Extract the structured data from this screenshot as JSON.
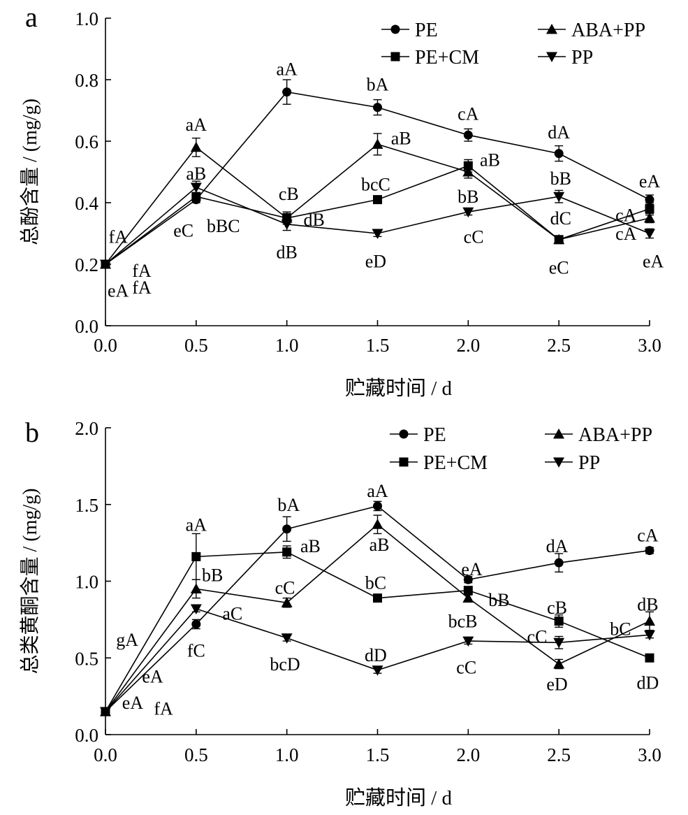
{
  "chart_data": [
    {
      "type": "line",
      "panel_label": "a",
      "xlabel": "贮藏时间 / d",
      "ylabel": "总酚含量 / (mg/g)",
      "xlim": [
        0,
        3
      ],
      "ylim": [
        0,
        1.0
      ],
      "x": [
        0.0,
        0.5,
        1.0,
        1.5,
        2.0,
        2.5,
        3.0
      ],
      "xtick_labels": [
        "0.0",
        "0.5",
        "1.0",
        "1.5",
        "2.0",
        "2.5",
        "3.0"
      ],
      "ytick_values": [
        0.0,
        0.2,
        0.4,
        0.6,
        0.8,
        1.0
      ],
      "ytick_labels": [
        "0.0",
        "0.2",
        "0.4",
        "0.6",
        "0.8",
        "1.0"
      ],
      "legend": [
        "PE",
        "ABA+PP",
        "PE+CM",
        "PP"
      ],
      "series": [
        {
          "name": "PE",
          "marker": "circle",
          "values": [
            0.2,
            0.41,
            0.76,
            0.71,
            0.62,
            0.56,
            0.41
          ],
          "errors": [
            0.01,
            0.01,
            0.04,
            0.025,
            0.02,
            0.025,
            0.015
          ]
        },
        {
          "name": "ABA+PP",
          "marker": "triangle-up",
          "values": [
            0.2,
            0.58,
            0.35,
            0.59,
            0.5,
            0.28,
            0.35
          ],
          "errors": [
            0.01,
            0.03,
            0.015,
            0.035,
            0.02,
            0.01,
            0.015
          ]
        },
        {
          "name": "PE+CM",
          "marker": "square",
          "values": [
            0.2,
            0.42,
            0.35,
            0.41,
            0.52,
            0.28,
            0.38
          ],
          "errors": [
            0.01,
            0.01,
            0.02,
            0.01,
            0.02,
            0.01,
            0.02
          ]
        },
        {
          "name": "PP",
          "marker": "triangle-down",
          "values": [
            0.2,
            0.45,
            0.33,
            0.3,
            0.37,
            0.42,
            0.3
          ],
          "errors": [
            0.01,
            0.02,
            0.02,
            0.01,
            0.01,
            0.02,
            0.015
          ]
        }
      ],
      "annotations": [
        {
          "text": "aA",
          "x": 1.0,
          "y": 0.835
        },
        {
          "text": "bA",
          "x": 1.5,
          "y": 0.785
        },
        {
          "text": "cA",
          "x": 2.0,
          "y": 0.69
        },
        {
          "text": "dA",
          "x": 2.5,
          "y": 0.63
        },
        {
          "text": "eA",
          "x": 3.0,
          "y": 0.47
        },
        {
          "text": "aA",
          "x": 0.5,
          "y": 0.655
        },
        {
          "text": "aB",
          "x": 0.5,
          "y": 0.495
        },
        {
          "text": "eC",
          "x": 0.43,
          "y": 0.31
        },
        {
          "text": "bBC",
          "x": 0.65,
          "y": 0.325
        },
        {
          "text": "cB",
          "x": 1.01,
          "y": 0.43
        },
        {
          "text": "dB",
          "x": 1.15,
          "y": 0.345
        },
        {
          "text": "dB",
          "x": 1.0,
          "y": 0.24
        },
        {
          "text": "bcC",
          "x": 1.49,
          "y": 0.46
        },
        {
          "text": "aB",
          "x": 1.63,
          "y": 0.61
        },
        {
          "text": "eD",
          "x": 1.49,
          "y": 0.21
        },
        {
          "text": "aB",
          "x": 2.12,
          "y": 0.54
        },
        {
          "text": "bB",
          "x": 2.0,
          "y": 0.42
        },
        {
          "text": "cC",
          "x": 2.03,
          "y": 0.29
        },
        {
          "text": "bB",
          "x": 2.51,
          "y": 0.48
        },
        {
          "text": "dC",
          "x": 2.51,
          "y": 0.35
        },
        {
          "text": "eC",
          "x": 2.5,
          "y": 0.19
        },
        {
          "text": "cA",
          "x": 2.87,
          "y": 0.36
        },
        {
          "text": "cA",
          "x": 2.87,
          "y": 0.3
        },
        {
          "text": "eA",
          "x": 3.02,
          "y": 0.21
        },
        {
          "text": "fA",
          "x": 0.07,
          "y": 0.29
        },
        {
          "text": "fA",
          "x": 0.2,
          "y": 0.18
        },
        {
          "text": "fA",
          "x": 0.2,
          "y": 0.125
        },
        {
          "text": "eA",
          "x": 0.07,
          "y": 0.115
        }
      ]
    },
    {
      "type": "line",
      "panel_label": "b",
      "xlabel": "贮藏时间 / d",
      "ylabel": "总类黄酮含量 / (mg/g)",
      "xlim": [
        0,
        3
      ],
      "ylim": [
        0,
        2.0
      ],
      "x": [
        0.0,
        0.5,
        1.0,
        1.5,
        2.0,
        2.5,
        3.0
      ],
      "xtick_labels": [
        "0.0",
        "0.5",
        "1.0",
        "1.5",
        "2.0",
        "2.5",
        "3.0"
      ],
      "ytick_values": [
        0.0,
        0.5,
        1.0,
        1.5,
        2.0
      ],
      "ytick_labels": [
        "0.0",
        "0.5",
        "1.0",
        "1.5",
        "2.0"
      ],
      "legend": [
        "PE",
        "ABA+PP",
        "PE+CM",
        "PP"
      ],
      "series": [
        {
          "name": "PE",
          "marker": "circle",
          "values": [
            0.15,
            0.72,
            1.34,
            1.49,
            1.01,
            1.12,
            1.2
          ],
          "errors": [
            0.02,
            0.03,
            0.08,
            0.03,
            0.02,
            0.06,
            0.02
          ]
        },
        {
          "name": "ABA+PP",
          "marker": "triangle-up",
          "values": [
            0.15,
            0.95,
            0.86,
            1.37,
            0.89,
            0.46,
            0.74
          ],
          "errors": [
            0.02,
            0.06,
            0.03,
            0.06,
            0.02,
            0.03,
            0.06
          ]
        },
        {
          "name": "PE+CM",
          "marker": "square",
          "values": [
            0.15,
            1.16,
            1.19,
            0.89,
            0.94,
            0.74,
            0.5
          ],
          "errors": [
            0.02,
            0.15,
            0.04,
            0.02,
            0.02,
            0.04,
            0.02
          ]
        },
        {
          "name": "PP",
          "marker": "triangle-down",
          "values": [
            0.15,
            0.82,
            0.63,
            0.42,
            0.61,
            0.6,
            0.65
          ],
          "errors": [
            0.02,
            0.02,
            0.02,
            0.02,
            0.02,
            0.04,
            0.02
          ]
        }
      ],
      "annotations": [
        {
          "text": "bA",
          "x": 1.01,
          "y": 1.5
        },
        {
          "text": "aA",
          "x": 1.5,
          "y": 1.59
        },
        {
          "text": "aA",
          "x": 0.5,
          "y": 1.37
        },
        {
          "text": "bB",
          "x": 0.59,
          "y": 1.04
        },
        {
          "text": "aC",
          "x": 0.7,
          "y": 0.79
        },
        {
          "text": "fC",
          "x": 0.5,
          "y": 0.55
        },
        {
          "text": "aB",
          "x": 1.13,
          "y": 1.23
        },
        {
          "text": "cC",
          "x": 0.99,
          "y": 0.96
        },
        {
          "text": "bcD",
          "x": 0.99,
          "y": 0.46
        },
        {
          "text": "aB",
          "x": 1.51,
          "y": 1.24
        },
        {
          "text": "bC",
          "x": 1.49,
          "y": 0.99
        },
        {
          "text": "dD",
          "x": 1.49,
          "y": 0.52
        },
        {
          "text": "eA",
          "x": 2.02,
          "y": 1.08
        },
        {
          "text": "bB",
          "x": 2.17,
          "y": 0.88
        },
        {
          "text": "bcB",
          "x": 1.97,
          "y": 0.74
        },
        {
          "text": "cC",
          "x": 1.99,
          "y": 0.44
        },
        {
          "text": "dA",
          "x": 2.49,
          "y": 1.23
        },
        {
          "text": "cB",
          "x": 2.49,
          "y": 0.83
        },
        {
          "text": "cC",
          "x": 2.38,
          "y": 0.64
        },
        {
          "text": "eD",
          "x": 2.49,
          "y": 0.33
        },
        {
          "text": "cA",
          "x": 2.99,
          "y": 1.3
        },
        {
          "text": "dB",
          "x": 2.99,
          "y": 0.85
        },
        {
          "text": "bC",
          "x": 2.84,
          "y": 0.69
        },
        {
          "text": "dD",
          "x": 2.99,
          "y": 0.34
        },
        {
          "text": "gA",
          "x": 0.12,
          "y": 0.62
        },
        {
          "text": "eA",
          "x": 0.26,
          "y": 0.38
        },
        {
          "text": "eA",
          "x": 0.15,
          "y": 0.21
        },
        {
          "text": "fA",
          "x": 0.32,
          "y": 0.17
        }
      ]
    }
  ]
}
